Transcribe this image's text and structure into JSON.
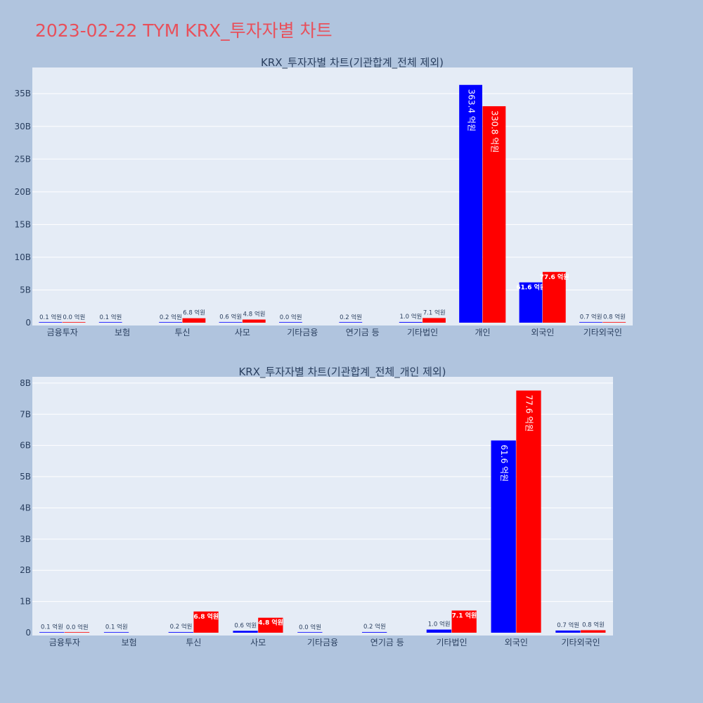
{
  "page": {
    "title": "2023-02-22 TYM KRX_투자자별 차트"
  },
  "chart_data": [
    {
      "type": "bar",
      "title": "KRX_투자자별 차트(기관합계_전체 제외)",
      "categories": [
        "금융투자",
        "보험",
        "투신",
        "사모",
        "기타금융",
        "연기금 등",
        "기타법인",
        "개인",
        "외국인",
        "기타외국인"
      ],
      "y_tick_labels": [
        "0",
        "5B",
        "10B",
        "15B",
        "20B",
        "25B",
        "30B",
        "35B"
      ],
      "ylim": [
        0,
        39000000000
      ],
      "series": [
        {
          "color": "#0000ff",
          "values": [
            10000000,
            10000000,
            20000000,
            60000000,
            0,
            20000000,
            100000000,
            36340000000,
            6160000000,
            70000000
          ],
          "labels": [
            "0.1 억원",
            "0.1 억원",
            "0.2 억원",
            "0.6 억원",
            "0.0 억원",
            "0.2 억원",
            "1.0 억원",
            "363.4 억원",
            "61.6 억원",
            "0.7 억원"
          ]
        },
        {
          "color": "#ff0000",
          "values": [
            0,
            null,
            680000000,
            480000000,
            null,
            null,
            710000000,
            33080000000,
            7760000000,
            80000000
          ],
          "labels": [
            "0.0 억원",
            "",
            "6.8 억원",
            "4.8 억원",
            "",
            "",
            "7.1 억원",
            "330.8 억원",
            "77.6 억원",
            "0.8 억원"
          ]
        }
      ]
    },
    {
      "type": "bar",
      "title": "KRX_투자자별 차트(기관합계_전체_개인 제외)",
      "categories": [
        "금융투자",
        "보험",
        "투신",
        "사모",
        "기타금융",
        "연기금 등",
        "기타법인",
        "외국인",
        "기타외국인"
      ],
      "y_tick_labels": [
        "0",
        "1B",
        "2B",
        "3B",
        "4B",
        "5B",
        "6B",
        "7B",
        "8B"
      ],
      "ylim": [
        0,
        8200000000
      ],
      "series": [
        {
          "color": "#0000ff",
          "values": [
            10000000,
            10000000,
            20000000,
            60000000,
            0,
            20000000,
            100000000,
            6160000000,
            70000000
          ],
          "labels": [
            "0.1 억원",
            "0.1 억원",
            "0.2 억원",
            "0.6 억원",
            "0.0 억원",
            "0.2 억원",
            "1.0 억원",
            "61.6 억원",
            "0.7 억원"
          ]
        },
        {
          "color": "#ff0000",
          "values": [
            0,
            null,
            680000000,
            480000000,
            null,
            null,
            710000000,
            7760000000,
            80000000
          ],
          "labels": [
            "0.0 억원",
            "",
            "6.8 억원",
            "4.8 억원",
            "",
            "",
            "7.1 억원",
            "77.6 억원",
            "0.8 억원"
          ]
        }
      ]
    }
  ]
}
